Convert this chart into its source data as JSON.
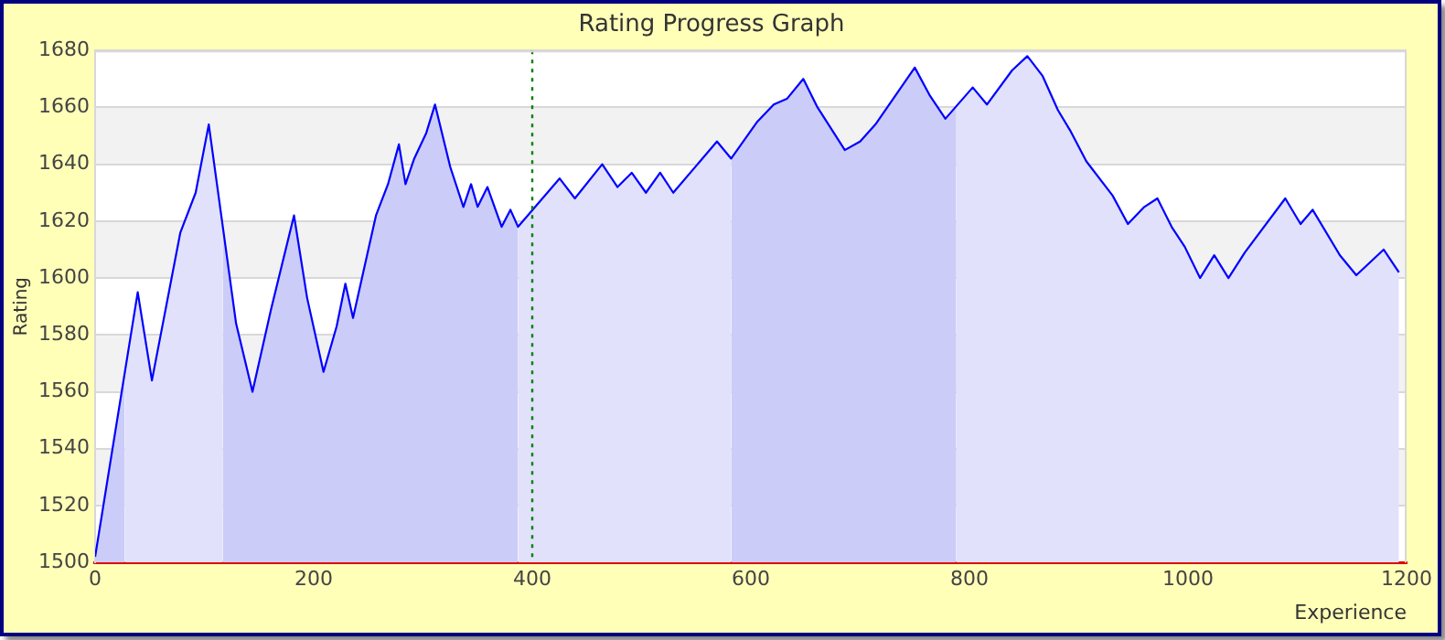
{
  "chart_data": {
    "type": "line",
    "title": "Rating Progress Graph",
    "xlabel": "Experience",
    "ylabel": "Rating",
    "xlim": [
      0,
      1200
    ],
    "xticks": [
      0,
      200,
      400,
      600,
      800,
      1000,
      1200
    ],
    "ylim": [
      1500,
      1680
    ],
    "yticks": [
      1500,
      1520,
      1540,
      1560,
      1580,
      1600,
      1620,
      1640,
      1660,
      1680
    ],
    "grid": "y",
    "marker": "none",
    "series": [
      {
        "color": "#0000ff",
        "x": [
          0,
          39,
          52,
          78,
          92,
          104,
          129,
          144,
          161,
          182,
          194,
          209,
          221,
          229,
          236,
          257,
          268,
          278,
          284,
          292,
          303,
          311,
          325,
          337,
          344,
          350,
          359,
          372,
          380,
          387,
          425,
          439,
          464,
          478,
          491,
          504,
          517,
          529,
          569,
          582,
          606,
          621,
          633,
          648,
          661,
          686,
          700,
          714,
          750,
          764,
          778,
          803,
          816,
          839,
          853,
          867,
          881,
          892,
          907,
          931,
          945,
          960,
          972,
          985,
          997,
          1011,
          1024,
          1037,
          1052,
          1089,
          1103,
          1114,
          1139,
          1154,
          1179,
          1193
        ],
        "values": [
          1502,
          1595,
          1564,
          1616,
          1630,
          1654,
          1584,
          1560,
          1589,
          1622,
          1593,
          1567,
          1583,
          1598,
          1586,
          1622,
          1633,
          1647,
          1633,
          1642,
          1651,
          1661,
          1639,
          1625,
          1633,
          1625,
          1632,
          1618,
          1624,
          1618,
          1635,
          1628,
          1640,
          1632,
          1637,
          1630,
          1637,
          1630,
          1648,
          1642,
          1655,
          1661,
          1663,
          1670,
          1660,
          1645,
          1648,
          1654,
          1674,
          1664,
          1656,
          1667,
          1661,
          1673,
          1678,
          1671,
          1659,
          1652,
          1641,
          1629,
          1619,
          1625,
          1628,
          1618,
          1611,
          1600,
          1608,
          1600,
          1609,
          1628,
          1619,
          1624,
          1608,
          1601,
          1610,
          1602
        ]
      },
      {
        "type": "area",
        "color": "#ccccf8",
        "x": [
          0,
          27
        ],
        "values": [
          1502,
          1566
        ]
      },
      {
        "type": "area",
        "color": "#e1e1fb",
        "x": [
          27,
          39,
          52,
          78,
          92,
          104,
          117
        ],
        "values": [
          1566,
          1595,
          1564,
          1616,
          1630,
          1654,
          1618
        ]
      },
      {
        "type": "area",
        "color": "#ccccf8",
        "x": [
          117,
          129,
          144,
          161,
          182,
          194,
          209,
          221,
          229,
          236,
          257,
          268,
          278,
          284,
          292,
          303,
          311,
          325,
          337,
          344,
          350,
          359,
          372,
          380,
          387
        ],
        "values": [
          1618,
          1584,
          1560,
          1589,
          1622,
          1593,
          1567,
          1583,
          1598,
          1586,
          1622,
          1633,
          1647,
          1633,
          1642,
          1651,
          1661,
          1639,
          1625,
          1633,
          1625,
          1632,
          1618,
          1624,
          1618
        ]
      },
      {
        "type": "area",
        "color": "#e1e1fb",
        "x": [
          387,
          425,
          439,
          464,
          478,
          491,
          504,
          517,
          529,
          569,
          582
        ],
        "values": [
          1618,
          1635,
          1628,
          1640,
          1632,
          1637,
          1630,
          1637,
          1630,
          1648,
          1642
        ]
      },
      {
        "type": "area",
        "color": "#ccccf8",
        "x": [
          582,
          606,
          621,
          633,
          648,
          661,
          686,
          700,
          714,
          750,
          764,
          778,
          788
        ],
        "values": [
          1642,
          1655,
          1661,
          1663,
          1670,
          1660,
          1645,
          1648,
          1654,
          1674,
          1664,
          1656,
          1660
        ]
      },
      {
        "type": "area",
        "color": "#e1e1fb",
        "x": [
          788,
          803,
          816,
          839,
          853,
          867,
          881,
          892,
          907,
          931,
          945,
          960,
          972,
          985,
          997,
          1011,
          1024,
          1037,
          1052,
          1089,
          1103,
          1114,
          1139,
          1154,
          1179,
          1193
        ],
        "values": [
          1660,
          1667,
          1661,
          1673,
          1678,
          1671,
          1659,
          1652,
          1641,
          1629,
          1619,
          1625,
          1628,
          1618,
          1611,
          1600,
          1608,
          1600,
          1609,
          1628,
          1619,
          1624,
          1608,
          1601,
          1610,
          1602
        ]
      }
    ],
    "ref_lines": [
      {
        "axis": "x",
        "value": 400,
        "color": "#008000",
        "line_style": "dotted"
      }
    ]
  }
}
